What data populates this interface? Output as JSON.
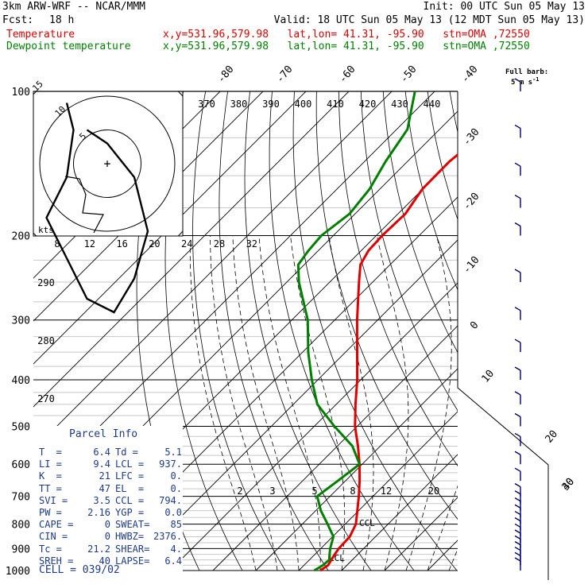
{
  "header": {
    "model": "3km ARW-WRF -- NCAR/MMM",
    "init": "Init: 00 UTC Sun 05 May 13",
    "fcst_label": "Fcst:",
    "fcst_value": "18 h",
    "valid": "Valid: 18 UTC Sun 05 May 13 (12 MDT Sun 05 May 13)"
  },
  "legend": [
    {
      "label": "Temperature",
      "info": "x,y=531.96,579.98   lat,lon= 41.31, -95.90   stn=OMA ,72550",
      "color": "#e00000"
    },
    {
      "label": "Dewpoint temperature",
      "info": "x,y=531.96,579.98   lat,lon= 41.31, -95.90   stn=OMA ,72550",
      "color": "#008000"
    }
  ],
  "barb_key": {
    "title": "Full barb:",
    "value": "5 m s",
    "exp": "-1"
  },
  "parcel_info": {
    "title": "Parcel Info",
    "rows": [
      {
        "a": "T  =",
        "av": "6.4",
        "b": "Td =",
        "bv": "5.1"
      },
      {
        "a": "LI =",
        "av": "9.4",
        "b": "LCL =",
        "bv": "937."
      },
      {
        "a": "K  =",
        "av": "21",
        "b": "LFC =",
        "bv": "0."
      },
      {
        "a": "TT =",
        "av": "47",
        "b": "EL  =",
        "bv": "0."
      },
      {
        "a": "SVI =",
        "av": "3.5",
        "b": "CCL =",
        "bv": "794."
      },
      {
        "a": "PW =",
        "av": "2.16",
        "b": "YGP =",
        "bv": "0.0"
      },
      {
        "a": "CAPE =",
        "av": "0",
        "b": "SWEAT=",
        "bv": "85"
      },
      {
        "a": "CIN =",
        "av": "0",
        "b": "HWBZ=",
        "bv": "2376."
      },
      {
        "a": "Tc =",
        "av": "21.2",
        "b": "SHEAR=",
        "bv": "4."
      },
      {
        "a": "SREH =",
        "av": "40",
        "b": "LAPSE=",
        "bv": "6.4"
      }
    ],
    "cell": "CELL = 039/02"
  },
  "hodograph": {
    "units": "kts",
    "ring_labels": [
      "5",
      "10",
      "15"
    ],
    "center_mark": "+"
  },
  "chart_data": {
    "type": "line",
    "title": "",
    "pressure_axis": {
      "scale": "log",
      "range_hpa": [
        1000,
        100
      ],
      "ticks": [
        100,
        200,
        300,
        400,
        500,
        600,
        700,
        800,
        900,
        1000
      ]
    },
    "temperature_isotherm_labels": [
      "-80",
      "-70",
      "-60",
      "-50",
      "-40",
      "-30",
      "-20",
      "-10",
      "0",
      "10",
      "20",
      "30",
      "40"
    ],
    "theta_labels_top": [
      "370",
      "380",
      "390",
      "400",
      "410",
      "420",
      "430",
      "440"
    ],
    "theta_labels_left": [
      "290",
      "280",
      "270"
    ],
    "mixing_ratio_labels_mid": [
      "8",
      "12",
      "16",
      "20",
      "24",
      "28",
      "32"
    ],
    "mixing_ratio_labels_low": [
      "2",
      "3",
      "5",
      "8",
      "12",
      "20"
    ],
    "annotations": [
      "CCL",
      "LCL"
    ],
    "series": [
      {
        "name": "Temperature",
        "color": "#e00000",
        "points": [
          {
            "p": 1000,
            "t": 5.0
          },
          {
            "p": 975,
            "t": 5.6
          },
          {
            "p": 950,
            "t": 5.1
          },
          {
            "p": 925,
            "t": 4.6
          },
          {
            "p": 900,
            "t": 4.2
          },
          {
            "p": 850,
            "t": 4.0
          },
          {
            "p": 800,
            "t": 2.5
          },
          {
            "p": 750,
            "t": -0.3
          },
          {
            "p": 700,
            "t": -3.3
          },
          {
            "p": 650,
            "t": -6.7
          },
          {
            "p": 600,
            "t": -10.6
          },
          {
            "p": 550,
            "t": -15.2
          },
          {
            "p": 500,
            "t": -20.5
          },
          {
            "p": 450,
            "t": -25.5
          },
          {
            "p": 400,
            "t": -30.8
          },
          {
            "p": 350,
            "t": -37.3
          },
          {
            "p": 300,
            "t": -44.8
          },
          {
            "p": 250,
            "t": -53.2
          },
          {
            "p": 230,
            "t": -56.9
          },
          {
            "p": 215,
            "t": -58.3
          },
          {
            "p": 200,
            "t": -58.6
          },
          {
            "p": 180,
            "t": -58.3
          },
          {
            "p": 160,
            "t": -60.1
          },
          {
            "p": 140,
            "t": -60.2
          },
          {
            "p": 120,
            "t": -58.6
          },
          {
            "p": 100,
            "t": -60.9
          }
        ]
      },
      {
        "name": "Dewpoint temperature",
        "color": "#008000",
        "points": [
          {
            "p": 1000,
            "t": 3.6
          },
          {
            "p": 975,
            "t": 4.4
          },
          {
            "p": 950,
            "t": 4.6
          },
          {
            "p": 925,
            "t": 3.4
          },
          {
            "p": 900,
            "t": 2.2
          },
          {
            "p": 850,
            "t": 0.2
          },
          {
            "p": 800,
            "t": -4.1
          },
          {
            "p": 750,
            "t": -8.8
          },
          {
            "p": 700,
            "t": -13.0
          },
          {
            "p": 650,
            "t": -11.8
          },
          {
            "p": 600,
            "t": -10.6
          },
          {
            "p": 550,
            "t": -16.5
          },
          {
            "p": 500,
            "t": -25.3
          },
          {
            "p": 450,
            "t": -34.4
          },
          {
            "p": 400,
            "t": -41.4
          },
          {
            "p": 350,
            "t": -48.7
          },
          {
            "p": 300,
            "t": -56.3
          },
          {
            "p": 250,
            "t": -67.2
          },
          {
            "p": 230,
            "t": -71.4
          },
          {
            "p": 215,
            "t": -72.3
          },
          {
            "p": 200,
            "t": -72.8
          },
          {
            "p": 180,
            "t": -71.3
          },
          {
            "p": 160,
            "t": -72.4
          },
          {
            "p": 140,
            "t": -75.1
          },
          {
            "p": 120,
            "t": -77.5
          },
          {
            "p": 100,
            "t": -84.6
          }
        ]
      }
    ],
    "hodograph_trace_kts": [
      [
        -6,
        9
      ],
      [
        -5,
        5
      ],
      [
        -6,
        -2
      ],
      [
        -9,
        -8
      ],
      [
        -6,
        -14
      ],
      [
        -3,
        -20
      ],
      [
        1,
        -22
      ],
      [
        4,
        -17
      ],
      [
        6,
        -10
      ],
      [
        4,
        -2
      ],
      [
        0,
        3
      ],
      [
        -3,
        5
      ]
    ],
    "wind_barbs": {
      "unit": "m s-1",
      "full_barb": 5,
      "pressures": [
        1000,
        975,
        950,
        925,
        900,
        875,
        850,
        825,
        800,
        775,
        750,
        725,
        700,
        650,
        600,
        550,
        500,
        450,
        400,
        350,
        300,
        250,
        200,
        175,
        150,
        125,
        100
      ]
    }
  }
}
